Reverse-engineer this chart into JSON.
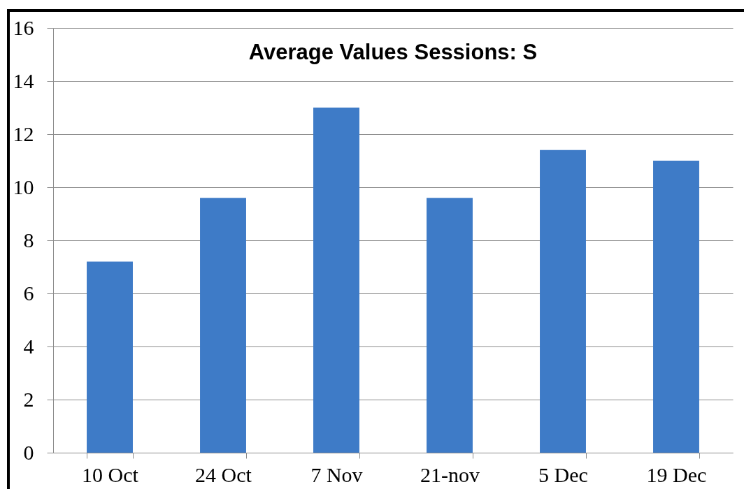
{
  "chart_data": {
    "type": "bar",
    "title": "Average Values Sessions: S",
    "categories": [
      "10 Oct",
      "24 Oct",
      "7 Nov",
      "21-nov",
      "5 Dec",
      "19 Dec"
    ],
    "values": [
      7.2,
      9.6,
      13.0,
      9.6,
      11.4,
      11.0
    ],
    "color": "#3e7bc7",
    "ylim": [
      0,
      16
    ],
    "yticks": [
      0,
      2,
      4,
      6,
      8,
      10,
      12,
      14,
      16
    ],
    "grid": "y"
  }
}
